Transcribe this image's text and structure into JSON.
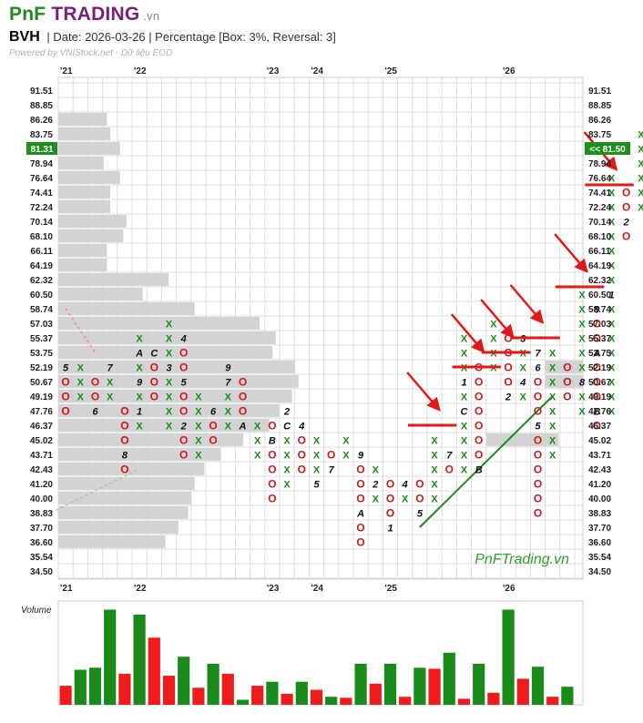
{
  "header": {
    "brand_pnf": "PnF",
    "brand_trading": "TRADING",
    "brand_domain": ".vn",
    "symbol": "BVH",
    "info": "|  Date: 2026-03-26  |  Percentage [Box: 3%, Reversal: 3]",
    "powered_by": "Powered by VNIStock.net - Dữ liệu EOD"
  },
  "chart_data": {
    "type": "point-and-figure",
    "symbol": "BVH",
    "box_pct": 3,
    "reversal": 3,
    "price_levels": [
      91.51,
      88.85,
      86.26,
      83.75,
      81.31,
      78.94,
      76.64,
      74.41,
      72.24,
      70.14,
      68.1,
      66.11,
      64.19,
      62.32,
      60.5,
      58.74,
      57.03,
      55.37,
      53.75,
      52.19,
      50.67,
      49.19,
      47.76,
      46.37,
      45.02,
      43.71,
      42.43,
      41.2,
      40.0,
      38.83,
      37.7,
      36.6,
      35.54,
      34.5
    ],
    "current_price": "81.31",
    "last_price_label": "<< 81.50",
    "year_labels": [
      {
        "col": 0,
        "text": "'21"
      },
      {
        "col": 5,
        "text": "'22"
      },
      {
        "col": 14,
        "text": "'23"
      },
      {
        "col": 17,
        "text": "'24"
      },
      {
        "col": 22,
        "text": "'25"
      },
      {
        "col": 30,
        "text": "'26"
      }
    ],
    "columns": [
      {
        "t": "O",
        "top": 52.19,
        "bottom": 47.76,
        "marks": {
          "52.19": "5"
        }
      },
      {
        "t": "X",
        "top": 52.19,
        "bottom": 49.19
      },
      {
        "t": "O",
        "top": 50.67,
        "bottom": 47.76,
        "marks": {
          "47.76": "6"
        }
      },
      {
        "t": "X",
        "top": 52.19,
        "bottom": 49.19,
        "marks": {
          "52.19": "7"
        }
      },
      {
        "t": "O",
        "top": 47.76,
        "bottom": 42.43,
        "marks": {
          "43.71": "8"
        }
      },
      {
        "t": "X",
        "top": 55.37,
        "bottom": 46.37,
        "marks": {
          "53.75": "A",
          "50.67": "9",
          "47.76": "1"
        }
      },
      {
        "t": "O",
        "top": 53.75,
        "bottom": 49.19,
        "marks": {
          "53.75": "C"
        }
      },
      {
        "t": "X",
        "top": 57.03,
        "bottom": 46.37,
        "marks": {
          "52.19": "3"
        }
      },
      {
        "t": "O",
        "top": 55.37,
        "bottom": 43.71,
        "marks": {
          "55.37": "4",
          "50.67": "5",
          "46.37": "2"
        }
      },
      {
        "t": "X",
        "top": 49.19,
        "bottom": 43.71
      },
      {
        "t": "O",
        "top": 47.76,
        "bottom": 45.02,
        "marks": {
          "47.76": "6"
        }
      },
      {
        "t": "X",
        "top": 52.19,
        "bottom": 46.37,
        "marks": {
          "52.19": "9",
          "50.67": "7"
        }
      },
      {
        "t": "O",
        "top": 50.67,
        "bottom": 46.37,
        "marks": {
          "46.37": "A"
        }
      },
      {
        "t": "X",
        "top": 46.37,
        "bottom": 43.71
      },
      {
        "t": "O",
        "top": 46.37,
        "bottom": 40.0,
        "marks": {
          "45.02": "B"
        }
      },
      {
        "t": "X",
        "top": 47.76,
        "bottom": 41.2,
        "marks": {
          "47.76": "2",
          "46.37": "C"
        }
      },
      {
        "t": "O",
        "top": 46.37,
        "bottom": 42.43,
        "marks": {
          "46.37": "4"
        }
      },
      {
        "t": "X",
        "top": 45.02,
        "bottom": 41.2,
        "marks": {
          "41.20": "5"
        }
      },
      {
        "t": "O",
        "top": 43.71,
        "bottom": 42.43,
        "marks": {
          "42.43": "7"
        }
      },
      {
        "t": "X",
        "top": 45.02,
        "bottom": 43.71
      },
      {
        "t": "O",
        "top": 43.71,
        "bottom": 36.6,
        "marks": {
          "43.71": "9",
          "38.83": "A"
        }
      },
      {
        "t": "X",
        "top": 42.43,
        "bottom": 40.0,
        "marks": {
          "41.20": "2"
        }
      },
      {
        "t": "O",
        "top": 41.2,
        "bottom": 37.7,
        "marks": {
          "42.43": "3",
          "37.70": "1"
        }
      },
      {
        "t": "X",
        "top": 41.2,
        "bottom": 40.0,
        "marks": {
          "41.20": "4"
        }
      },
      {
        "t": "O",
        "top": 41.2,
        "bottom": 38.83,
        "marks": {
          "38.83": "5"
        }
      },
      {
        "t": "X",
        "top": 45.02,
        "bottom": 40.0
      },
      {
        "t": "O",
        "top": 43.71,
        "bottom": 42.43,
        "marks": {
          "43.71": "7"
        }
      },
      {
        "t": "X",
        "top": 55.37,
        "bottom": 42.43,
        "marks": {
          "50.67": "1",
          "47.76": "C"
        }
      },
      {
        "t": "O",
        "top": 52.19,
        "bottom": 42.43,
        "marks": {
          "42.43": "B"
        }
      },
      {
        "t": "X",
        "top": 57.03,
        "bottom": 52.19
      },
      {
        "t": "O",
        "top": 55.37,
        "bottom": 49.19,
        "marks": {
          "49.19": "2"
        }
      },
      {
        "t": "X",
        "top": 55.37,
        "bottom": 49.19,
        "marks": {
          "55.37": "3",
          "50.67": "4"
        }
      },
      {
        "t": "O",
        "top": 53.75,
        "bottom": 38.83,
        "marks": {
          "53.75": "7",
          "52.19": "6",
          "46.37": "5"
        }
      },
      {
        "t": "X",
        "top": 53.75,
        "bottom": 43.71
      },
      {
        "t": "O",
        "top": 52.19,
        "bottom": 49.19
      },
      {
        "t": "X",
        "top": 60.5,
        "bottom": 47.76,
        "marks": {
          "50.67": "8"
        }
      },
      {
        "t": "O",
        "top": 58.74,
        "bottom": 46.37,
        "marks": {
          "58.74": "9",
          "53.75": "A",
          "47.76": "B"
        }
      },
      {
        "t": "X",
        "top": 76.64,
        "bottom": 47.76,
        "marks": {
          "60.50": "1"
        }
      },
      {
        "t": "O",
        "top": 74.41,
        "bottom": 68.1,
        "marks": {
          "70.14": "2"
        }
      },
      {
        "t": "X",
        "top": 83.75,
        "bottom": 72.24,
        "marks": {
          "79.94": "3"
        }
      },
      {
        "t": "O",
        "top": 79.94,
        "bottom": 72.24
      },
      {
        "t": "X",
        "top": 83.75,
        "bottom": 74.41
      }
    ],
    "volume_label": "Volume",
    "volume": [
      {
        "v": 0.19,
        "up": false
      },
      {
        "v": 0.35,
        "up": true
      },
      {
        "v": 0.37,
        "up": true
      },
      {
        "v": 0.95,
        "up": true
      },
      {
        "v": 0.31,
        "up": false
      },
      {
        "v": 0.9,
        "up": true
      },
      {
        "v": 0.67,
        "up": false
      },
      {
        "v": 0.29,
        "up": false
      },
      {
        "v": 0.48,
        "up": true
      },
      {
        "v": 0.17,
        "up": false
      },
      {
        "v": 0.41,
        "up": true
      },
      {
        "v": 0.31,
        "up": false
      },
      {
        "v": 0.05,
        "up": true
      },
      {
        "v": 0.19,
        "up": false
      },
      {
        "v": 0.23,
        "up": true
      },
      {
        "v": 0.11,
        "up": false
      },
      {
        "v": 0.23,
        "up": true
      },
      {
        "v": 0.15,
        "up": false
      },
      {
        "v": 0.08,
        "up": true
      },
      {
        "v": 0.07,
        "up": false
      },
      {
        "v": 0.41,
        "up": true
      },
      {
        "v": 0.21,
        "up": false
      },
      {
        "v": 0.41,
        "up": true
      },
      {
        "v": 0.08,
        "up": false
      },
      {
        "v": 0.37,
        "up": true
      },
      {
        "v": 0.36,
        "up": false
      },
      {
        "v": 0.52,
        "up": true
      },
      {
        "v": 0.06,
        "up": false
      },
      {
        "v": 0.41,
        "up": true
      },
      {
        "v": 0.12,
        "up": false
      },
      {
        "v": 0.95,
        "up": true
      },
      {
        "v": 0.26,
        "up": false
      },
      {
        "v": 0.38,
        "up": true
      },
      {
        "v": 0.08,
        "up": false
      },
      {
        "v": 0.18,
        "up": true
      }
    ],
    "trendlines": [
      {
        "kind": "support",
        "color": "#1f8a1f",
        "style": "solid",
        "from": {
          "col": 24,
          "price": 37.7
        },
        "to": {
          "col": 33,
          "price": 49.19
        }
      },
      {
        "kind": "resistance",
        "color": "#f08080",
        "style": "dashed",
        "from": {
          "col": 0,
          "price": 58.74
        },
        "to": {
          "col": 2,
          "price": 53.75
        }
      },
      {
        "kind": "support",
        "color": "#8fd18f",
        "style": "dashed",
        "from": {
          "col": -1,
          "price": 38.83
        },
        "to": {
          "col": 5,
          "price": 42.43
        }
      }
    ],
    "breakouts": [
      {
        "col": 24,
        "price": 46.37
      },
      {
        "col": 27,
        "price": 52.19
      },
      {
        "col": 29,
        "price": 53.75
      },
      {
        "col": 31,
        "price": 55.37
      },
      {
        "col": 34,
        "price": 61.41
      },
      {
        "col": 36,
        "price": 75.52
      }
    ],
    "volume_profile": [
      {
        "price": 86.26,
        "depth": 1.5
      },
      {
        "price": 83.75,
        "depth": 1.6
      },
      {
        "price": 81.31,
        "depth": 1.9
      },
      {
        "price": 78.94,
        "depth": 1.4
      },
      {
        "price": 76.64,
        "depth": 1.9
      },
      {
        "price": 74.41,
        "depth": 1.6
      },
      {
        "price": 72.24,
        "depth": 1.6
      },
      {
        "price": 70.14,
        "depth": 2.1
      },
      {
        "price": 68.1,
        "depth": 2.0
      },
      {
        "price": 66.11,
        "depth": 1.5
      },
      {
        "price": 64.19,
        "depth": 1.5
      },
      {
        "price": 62.32,
        "depth": 3.4
      },
      {
        "price": 60.5,
        "depth": 2.6
      },
      {
        "price": 58.74,
        "depth": 4.2
      },
      {
        "price": 57.03,
        "depth": 6.2
      },
      {
        "price": 55.37,
        "depth": 6.7
      },
      {
        "price": 53.75,
        "depth": 6.6
      },
      {
        "price": 52.19,
        "depth": 7.3
      },
      {
        "price": 50.67,
        "depth": 7.4
      },
      {
        "price": 49.19,
        "depth": 7.2
      },
      {
        "price": 47.76,
        "depth": 6.8
      },
      {
        "price": 46.37,
        "depth": 6.5
      },
      {
        "price": 45.02,
        "depth": 5.7
      },
      {
        "price": 43.71,
        "depth": 5.0
      },
      {
        "price": 42.43,
        "depth": 4.5
      },
      {
        "price": 41.2,
        "depth": 4.2
      },
      {
        "price": 40.0,
        "depth": 4.1
      },
      {
        "price": 38.83,
        "depth": 4.0
      },
      {
        "price": 37.7,
        "depth": 3.7
      },
      {
        "price": 36.6,
        "depth": 3.3
      }
    ],
    "profile_right": [
      {
        "price": 52.19,
        "from": 33,
        "to": 35,
        "depth": 2.0
      },
      {
        "price": 50.67,
        "from": 33,
        "to": 35,
        "depth": 2.0
      },
      {
        "price": 45.02,
        "from": 29,
        "to": 35,
        "depth": 1.5
      }
    ],
    "watermark": "PnFTrading.vn"
  }
}
